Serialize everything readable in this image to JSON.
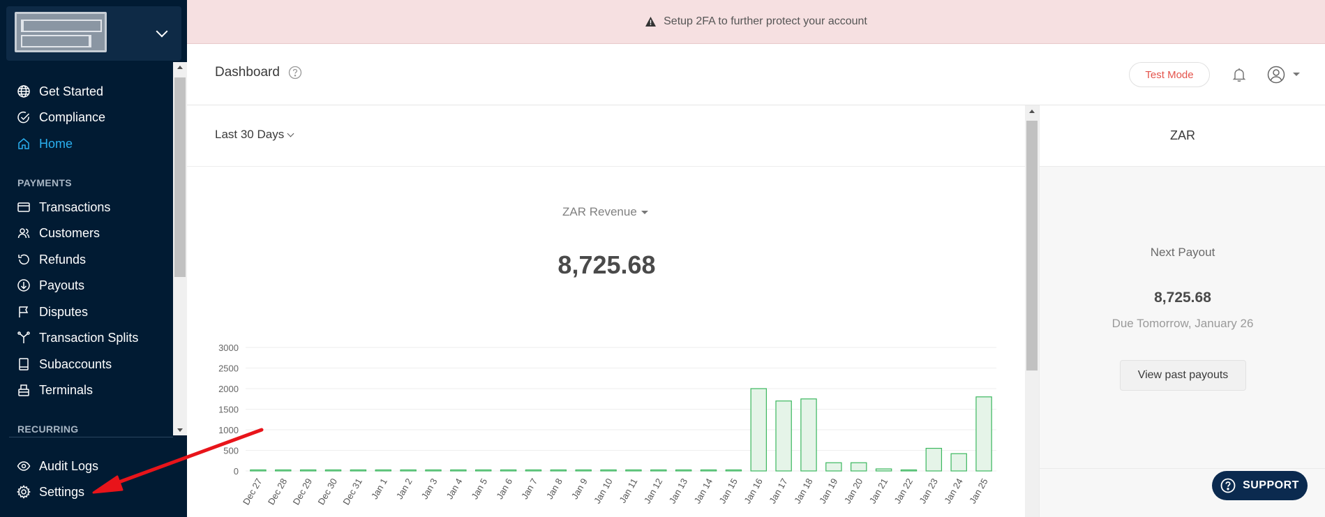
{
  "banner": {
    "text": "Setup 2FA to further protect your account",
    "icon": "warning-icon"
  },
  "header": {
    "title": "Dashboard",
    "test_mode_label": "Test Mode"
  },
  "sidebar": {
    "items": [
      {
        "label": "Get Started",
        "icon": "globe-icon"
      },
      {
        "label": "Compliance",
        "icon": "check-circle-icon"
      },
      {
        "label": "Home",
        "icon": "home-icon",
        "active": true
      }
    ],
    "payments_section": "PAYMENTS",
    "payments_items": [
      {
        "label": "Transactions",
        "icon": "card-icon"
      },
      {
        "label": "Customers",
        "icon": "users-icon"
      },
      {
        "label": "Refunds",
        "icon": "refund-icon"
      },
      {
        "label": "Payouts",
        "icon": "payout-icon"
      },
      {
        "label": "Disputes",
        "icon": "flag-icon"
      },
      {
        "label": "Transaction Splits",
        "icon": "split-icon"
      },
      {
        "label": "Subaccounts",
        "icon": "book-icon"
      },
      {
        "label": "Terminals",
        "icon": "terminal-icon"
      }
    ],
    "recurring_section": "RECURRING",
    "bottom_items": [
      {
        "label": "Audit Logs",
        "icon": "eye-icon"
      },
      {
        "label": "Settings",
        "icon": "gear-icon"
      }
    ]
  },
  "filter": {
    "range_label": "Last 30 Days"
  },
  "metric": {
    "select_label": "ZAR Revenue",
    "value": "8,725.68"
  },
  "right_panel": {
    "currency": "ZAR",
    "next_payout_label": "Next Payout",
    "amount": "8,725.68",
    "due_text": "Due Tomorrow, January 26",
    "view_button": "View past payouts"
  },
  "support": {
    "label": "SUPPORT"
  },
  "chart_data": {
    "type": "bar",
    "categories": [
      "Dec 27",
      "Dec 28",
      "Dec 29",
      "Dec 30",
      "Dec 31",
      "Jan 1",
      "Jan 2",
      "Jan 3",
      "Jan 4",
      "Jan 5",
      "Jan 6",
      "Jan 7",
      "Jan 8",
      "Jan 9",
      "Jan 10",
      "Jan 11",
      "Jan 12",
      "Jan 13",
      "Jan 14",
      "Jan 15",
      "Jan 16",
      "Jan 17",
      "Jan 18",
      "Jan 19",
      "Jan 20",
      "Jan 21",
      "Jan 22",
      "Jan 23",
      "Jan 24",
      "Jan 25"
    ],
    "values": [
      0,
      0,
      0,
      0,
      0,
      0,
      0,
      0,
      0,
      0,
      0,
      0,
      0,
      0,
      0,
      0,
      0,
      0,
      0,
      0,
      2000,
      1700,
      1750,
      200,
      200,
      50,
      0,
      550,
      420,
      1800
    ],
    "yticks": [
      "0",
      "500",
      "1000",
      "1500",
      "2000",
      "2500",
      "3000"
    ],
    "ylim": [
      0,
      3000
    ],
    "bar_fill": "#e5f4e8",
    "bar_stroke": "#3bb75e"
  }
}
